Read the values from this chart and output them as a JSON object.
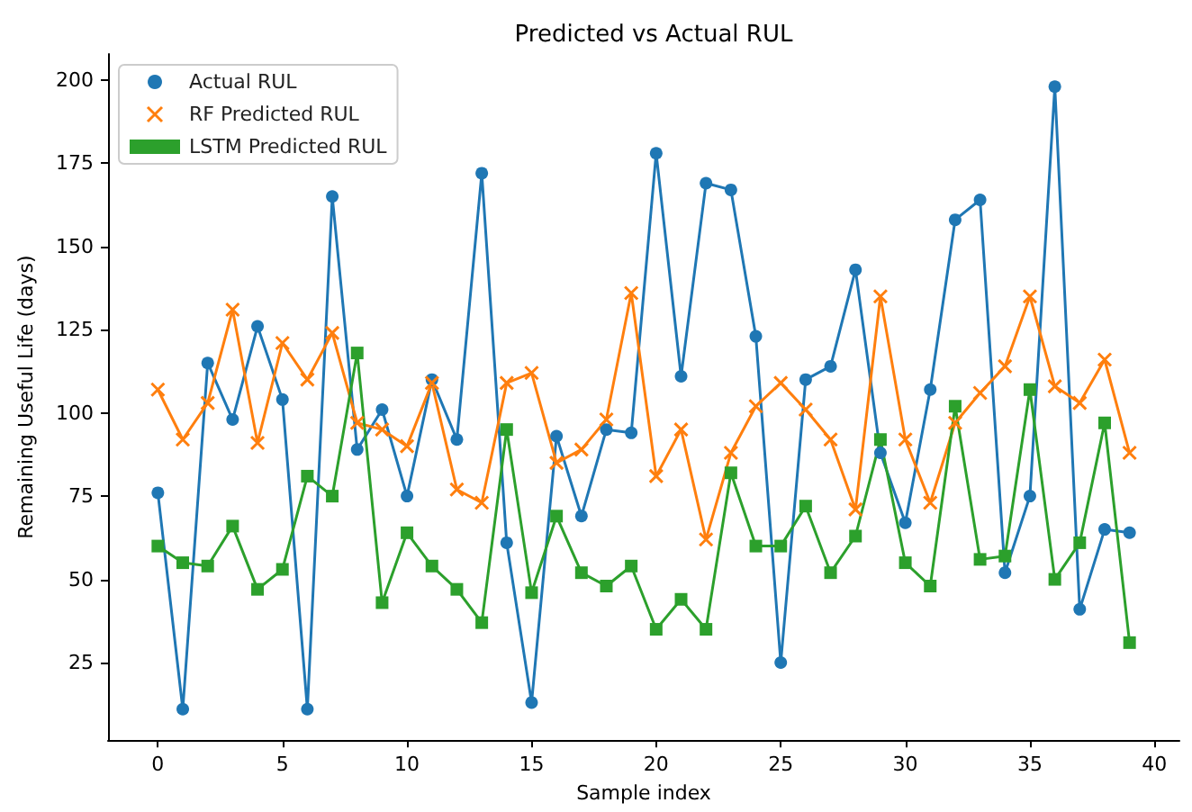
{
  "chart_data": {
    "type": "line",
    "title": "Predicted vs Actual RUL",
    "xlabel": "Sample index",
    "ylabel": "Remaining Useful Life (days)",
    "x": [
      0,
      1,
      2,
      3,
      4,
      5,
      6,
      7,
      8,
      9,
      10,
      11,
      12,
      13,
      14,
      15,
      16,
      17,
      18,
      19,
      20,
      21,
      22,
      23,
      24,
      25,
      26,
      27,
      28,
      29,
      30,
      31,
      32,
      33,
      34,
      35,
      36,
      37,
      38,
      39
    ],
    "series": [
      {
        "name": "Actual RUL",
        "color": "#1f77b4",
        "marker": "circle",
        "values": [
          76,
          11,
          115,
          98,
          126,
          104,
          11,
          165,
          89,
          101,
          75,
          110,
          92,
          172,
          61,
          13,
          93,
          69,
          95,
          94,
          178,
          111,
          169,
          167,
          123,
          25,
          110,
          114,
          143,
          88,
          67,
          107,
          158,
          164,
          52,
          75,
          198,
          41,
          65,
          64
        ]
      },
      {
        "name": "RF Predicted RUL",
        "color": "#ff7f0e",
        "marker": "cross",
        "values": [
          107,
          92,
          103,
          131,
          91,
          121,
          110,
          124,
          97,
          95,
          90,
          109,
          77,
          73,
          109,
          112,
          85,
          89,
          98,
          136,
          81,
          95,
          62,
          88,
          102,
          109,
          101,
          92,
          71,
          135,
          92,
          73,
          97,
          106,
          114,
          135,
          108,
          103,
          116,
          88
        ]
      },
      {
        "name": "LSTM Predicted RUL",
        "color": "#2ca02c",
        "marker": "square",
        "values": [
          60,
          55,
          54,
          66,
          47,
          53,
          81,
          75,
          118,
          43,
          64,
          54,
          47,
          37,
          95,
          46,
          69,
          52,
          48,
          54,
          35,
          44,
          35,
          82,
          60,
          60,
          72,
          52,
          63,
          92,
          55,
          48,
          102,
          56,
          57,
          107,
          50,
          61,
          97,
          31
        ]
      }
    ],
    "xlim": [
      -2,
      41
    ],
    "xticks": [
      0,
      5,
      10,
      15,
      20,
      25,
      30,
      35,
      40
    ],
    "ylim": [
      1.7,
      207.8
    ],
    "yticks": [
      25,
      50,
      75,
      100,
      125,
      150,
      175,
      200
    ],
    "grid": false,
    "legend": "top left"
  }
}
